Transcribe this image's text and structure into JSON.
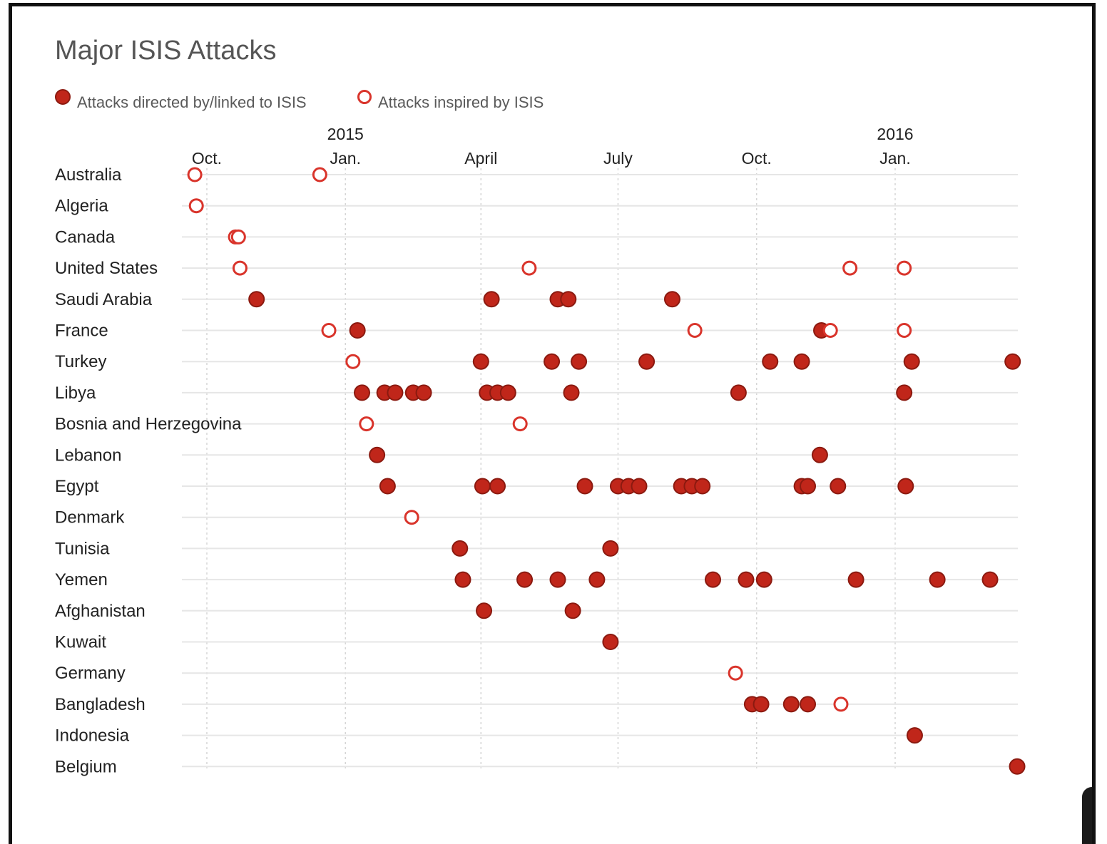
{
  "chart_data": {
    "type": "scatter",
    "title": "Major ISIS Attacks",
    "legend": {
      "placement": "top-left",
      "items": [
        {
          "label": "Attacks directed by/linked to ISIS",
          "kind": "directed"
        },
        {
          "label": "Attacks inspired by ISIS",
          "kind": "inspired"
        }
      ]
    },
    "x_axis": {
      "type": "date",
      "range": [
        "2014-09-10",
        "2016-03-24"
      ],
      "year_labels": [
        {
          "label": "2015",
          "date": "2015-01-01"
        },
        {
          "label": "2016",
          "date": "2016-01-01"
        }
      ],
      "month_ticks": [
        {
          "label": "Oct.",
          "date": "2014-10-01"
        },
        {
          "label": "Jan.",
          "date": "2015-01-01"
        },
        {
          "label": "April",
          "date": "2015-04-01"
        },
        {
          "label": "July",
          "date": "2015-07-01"
        },
        {
          "label": "Oct.",
          "date": "2015-10-01"
        },
        {
          "label": "Jan.",
          "date": "2016-01-01"
        }
      ]
    },
    "colors": {
      "directed_fill": "#c0261a",
      "directed_stroke": "#8b1a10",
      "inspired_stroke": "#d9342b",
      "inspired_fill": "#ffffff"
    },
    "rows": [
      {
        "country": "Australia",
        "attacks": [
          [
            "2014-09-23",
            "inspired"
          ],
          [
            "2014-12-15",
            "inspired"
          ]
        ]
      },
      {
        "country": "Algeria",
        "attacks": [
          [
            "2014-09-24",
            "inspired"
          ]
        ]
      },
      {
        "country": "Canada",
        "attacks": [
          [
            "2014-10-20",
            "inspired"
          ],
          [
            "2014-10-22",
            "inspired"
          ]
        ]
      },
      {
        "country": "United States",
        "attacks": [
          [
            "2014-10-23",
            "inspired"
          ],
          [
            "2015-05-03",
            "inspired"
          ],
          [
            "2015-12-02",
            "inspired"
          ],
          [
            "2016-01-07",
            "inspired"
          ]
        ]
      },
      {
        "country": "Saudi Arabia",
        "attacks": [
          [
            "2014-11-03",
            "directed"
          ],
          [
            "2015-04-08",
            "directed"
          ],
          [
            "2015-05-22",
            "directed"
          ],
          [
            "2015-05-29",
            "directed"
          ],
          [
            "2015-08-06",
            "directed"
          ]
        ]
      },
      {
        "country": "France",
        "attacks": [
          [
            "2014-12-21",
            "inspired"
          ],
          [
            "2015-01-09",
            "directed"
          ],
          [
            "2015-08-21",
            "inspired"
          ],
          [
            "2015-11-13",
            "directed"
          ],
          [
            "2015-11-19",
            "inspired"
          ],
          [
            "2016-01-07",
            "inspired"
          ]
        ]
      },
      {
        "country": "Turkey",
        "attacks": [
          [
            "2015-01-06",
            "inspired"
          ],
          [
            "2015-04-01",
            "directed"
          ],
          [
            "2015-05-18",
            "directed"
          ],
          [
            "2015-06-05",
            "directed"
          ],
          [
            "2015-07-20",
            "directed"
          ],
          [
            "2015-10-10",
            "directed"
          ],
          [
            "2015-10-31",
            "directed"
          ],
          [
            "2016-01-12",
            "directed"
          ],
          [
            "2016-03-19",
            "directed"
          ]
        ]
      },
      {
        "country": "Libya",
        "attacks": [
          [
            "2015-01-12",
            "directed"
          ],
          [
            "2015-01-27",
            "directed"
          ],
          [
            "2015-02-03",
            "directed"
          ],
          [
            "2015-02-15",
            "directed"
          ],
          [
            "2015-02-22",
            "directed"
          ],
          [
            "2015-04-05",
            "directed"
          ],
          [
            "2015-04-12",
            "directed"
          ],
          [
            "2015-04-19",
            "directed"
          ],
          [
            "2015-05-31",
            "directed"
          ],
          [
            "2015-09-19",
            "directed"
          ],
          [
            "2016-01-07",
            "directed"
          ]
        ]
      },
      {
        "country": "Bosnia and Herzegovina",
        "attacks": [
          [
            "2015-01-15",
            "inspired"
          ],
          [
            "2015-04-27",
            "inspired"
          ]
        ]
      },
      {
        "country": "Lebanon",
        "attacks": [
          [
            "2015-01-22",
            "directed"
          ],
          [
            "2015-11-12",
            "directed"
          ]
        ]
      },
      {
        "country": "Egypt",
        "attacks": [
          [
            "2015-01-29",
            "directed"
          ],
          [
            "2015-04-02",
            "directed"
          ],
          [
            "2015-04-12",
            "directed"
          ],
          [
            "2015-06-09",
            "directed"
          ],
          [
            "2015-07-01",
            "directed"
          ],
          [
            "2015-07-08",
            "directed"
          ],
          [
            "2015-07-15",
            "directed"
          ],
          [
            "2015-08-12",
            "directed"
          ],
          [
            "2015-08-19",
            "directed"
          ],
          [
            "2015-08-26",
            "directed"
          ],
          [
            "2015-10-31",
            "directed"
          ],
          [
            "2015-11-04",
            "directed"
          ],
          [
            "2015-11-24",
            "directed"
          ],
          [
            "2016-01-08",
            "directed"
          ]
        ]
      },
      {
        "country": "Denmark",
        "attacks": [
          [
            "2015-02-14",
            "inspired"
          ]
        ]
      },
      {
        "country": "Tunisia",
        "attacks": [
          [
            "2015-03-18",
            "directed"
          ],
          [
            "2015-06-26",
            "directed"
          ]
        ]
      },
      {
        "country": "Yemen",
        "attacks": [
          [
            "2015-03-20",
            "directed"
          ],
          [
            "2015-04-30",
            "directed"
          ],
          [
            "2015-05-22",
            "directed"
          ],
          [
            "2015-06-17",
            "directed"
          ],
          [
            "2015-09-02",
            "directed"
          ],
          [
            "2015-09-24",
            "directed"
          ],
          [
            "2015-10-06",
            "directed"
          ],
          [
            "2015-12-06",
            "directed"
          ],
          [
            "2016-01-29",
            "directed"
          ],
          [
            "2016-03-04",
            "directed"
          ]
        ]
      },
      {
        "country": "Afghanistan",
        "attacks": [
          [
            "2015-04-03",
            "directed"
          ],
          [
            "2015-06-01",
            "directed"
          ]
        ]
      },
      {
        "country": "Kuwait",
        "attacks": [
          [
            "2015-06-26",
            "directed"
          ]
        ]
      },
      {
        "country": "Germany",
        "attacks": [
          [
            "2015-09-17",
            "inspired"
          ]
        ]
      },
      {
        "country": "Bangladesh",
        "attacks": [
          [
            "2015-09-28",
            "directed"
          ],
          [
            "2015-10-04",
            "directed"
          ],
          [
            "2015-10-24",
            "directed"
          ],
          [
            "2015-11-04",
            "directed"
          ],
          [
            "2015-11-26",
            "inspired"
          ]
        ]
      },
      {
        "country": "Indonesia",
        "attacks": [
          [
            "2016-01-14",
            "directed"
          ]
        ]
      },
      {
        "country": "Belgium",
        "attacks": [
          [
            "2016-03-22",
            "directed"
          ]
        ]
      }
    ]
  }
}
